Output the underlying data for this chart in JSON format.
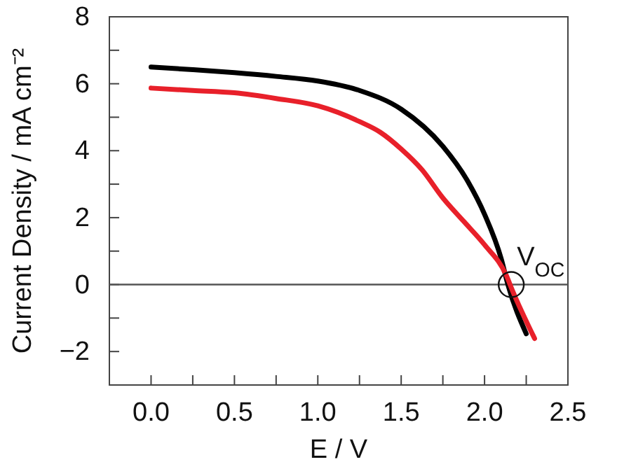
{
  "chart_data": {
    "type": "line",
    "xlabel": "E / V",
    "ylabel": "Current Density / mA cm⁻²",
    "xlim": [
      -0.25,
      2.5
    ],
    "ylim": [
      -3,
      8
    ],
    "xticks": [
      {
        "value": 0,
        "label": "0.0"
      },
      {
        "value": 0.25,
        "label": null
      },
      {
        "value": 0.5,
        "label": "0.5"
      },
      {
        "value": 0.75,
        "label": null
      },
      {
        "value": 1,
        "label": "1.0"
      },
      {
        "value": 1.25,
        "label": null
      },
      {
        "value": 1.5,
        "label": "1.5"
      },
      {
        "value": 1.75,
        "label": null
      },
      {
        "value": 2,
        "label": "2.0"
      },
      {
        "value": 2.25,
        "label": null
      },
      {
        "value": 2.5,
        "label": "2.5"
      }
    ],
    "yticks": [
      {
        "value": -2,
        "label": "−2"
      },
      {
        "value": -1,
        "label": null
      },
      0,
      {
        "value": 1,
        "label": null
      },
      2,
      {
        "value": 3,
        "label": null
      },
      4,
      {
        "value": 5,
        "label": null
      },
      6,
      {
        "value": 7,
        "label": null
      },
      8
    ],
    "marker": "none",
    "line_style": "solid",
    "series": [
      {
        "color": "#000000",
        "x": [
          0,
          0.25,
          0.5,
          0.75,
          1,
          1.25,
          1.5,
          1.75,
          1.9,
          2,
          2.1,
          2.14,
          2.25
        ],
        "values": [
          6.5,
          6.42,
          6.33,
          6.22,
          6.08,
          5.8,
          5.24,
          4.13,
          3.08,
          2.1,
          0.77,
          0,
          -1.47
        ]
      },
      {
        "color": "#e8202a",
        "x": [
          0,
          0.25,
          0.5,
          0.75,
          1,
          1.25,
          1.375,
          1.5,
          1.625,
          1.75,
          1.875,
          2,
          2.13,
          2.17,
          2.3
        ],
        "values": [
          5.87,
          5.8,
          5.73,
          5.56,
          5.34,
          4.87,
          4.55,
          4.05,
          3.43,
          2.59,
          1.89,
          1.19,
          0.28,
          -0.21,
          -1.61
        ]
      }
    ],
    "ref_lines": [
      {
        "axis": "y",
        "value": 0,
        "color": "#555555"
      }
    ],
    "annotations": [
      {
        "text": "V$_{OC}$",
        "x": 2.16,
        "y": 0
      }
    ]
  }
}
